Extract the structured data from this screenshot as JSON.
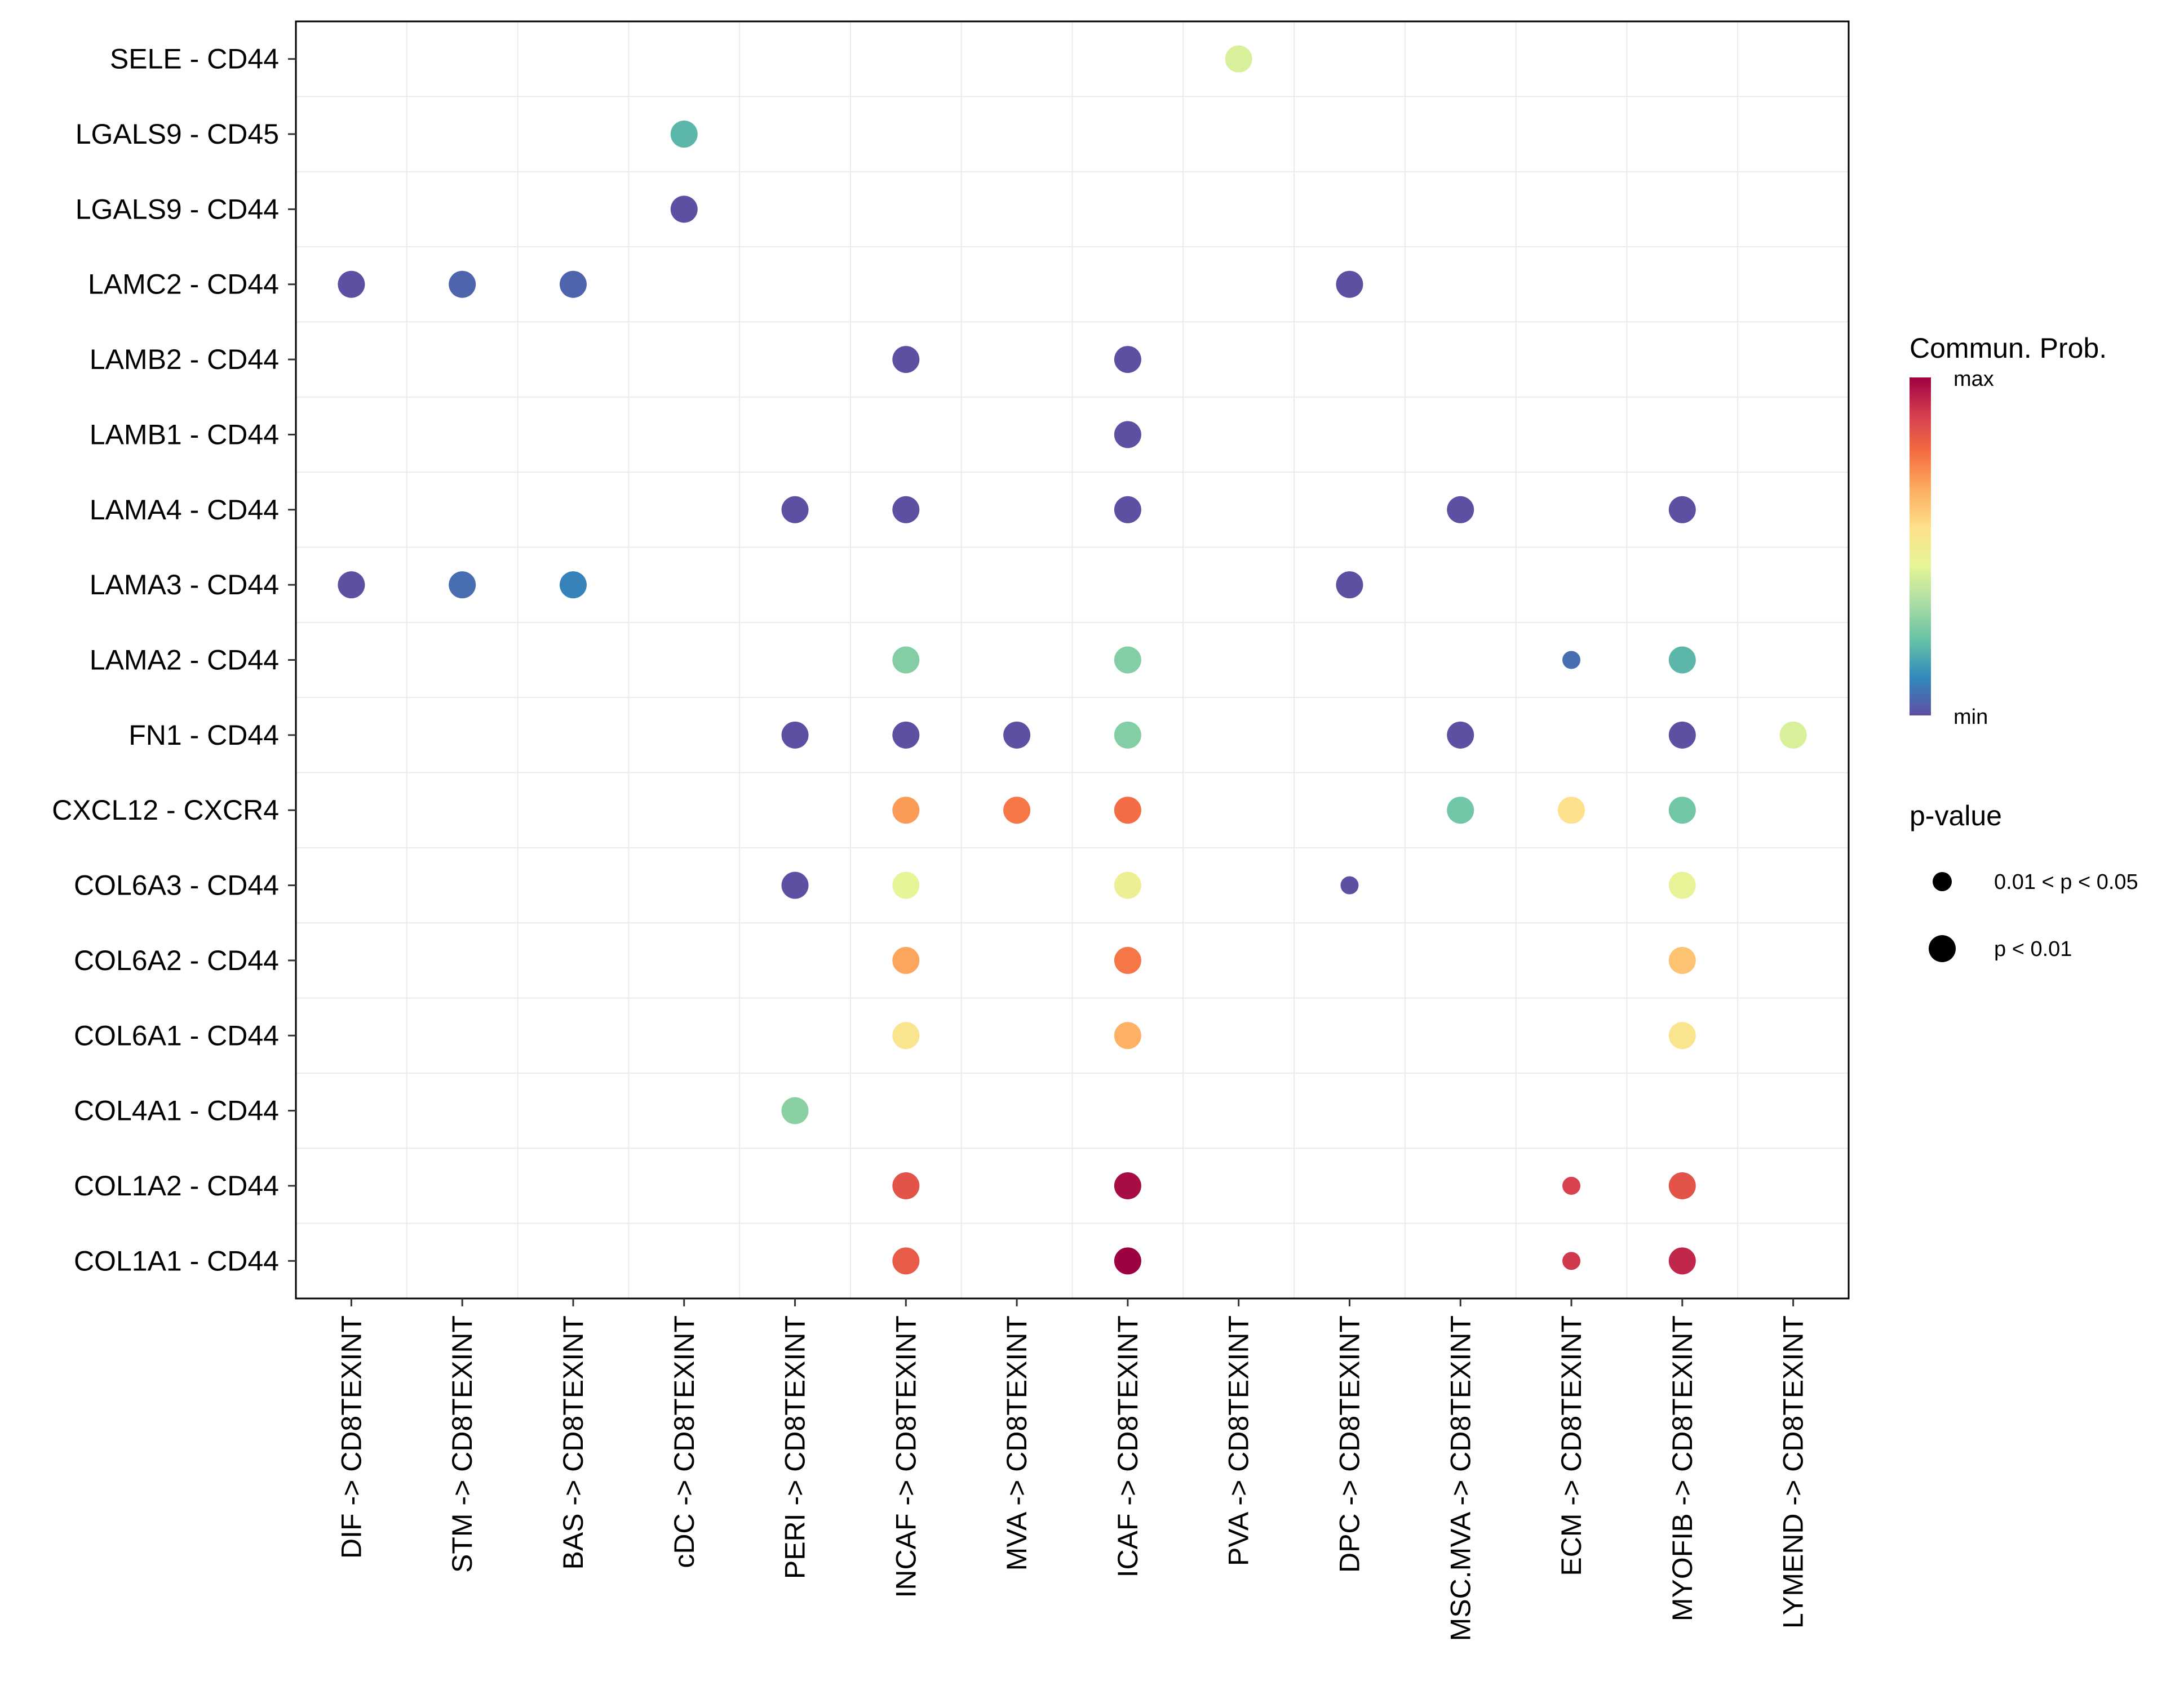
{
  "chart_data": {
    "type": "bubble",
    "x_categories": [
      "DIF -> CD8TEXINT",
      "STM -> CD8TEXINT",
      "BAS -> CD8TEXINT",
      "cDC -> CD8TEXINT",
      "PERI -> CD8TEXINT",
      "INCAF -> CD8TEXINT",
      "MVA -> CD8TEXINT",
      "ICAF -> CD8TEXINT",
      "PVA -> CD8TEXINT",
      "DPC -> CD8TEXINT",
      "MSC.MVA -> CD8TEXINT",
      "ECM -> CD8TEXINT",
      "MYOFIB -> CD8TEXINT",
      "LYMEND -> CD8TEXINT"
    ],
    "y_categories": [
      "SELE - CD44",
      "LGALS9 - CD45",
      "LGALS9 - CD44",
      "LAMC2 - CD44",
      "LAMB2 - CD44",
      "LAMB1 - CD44",
      "LAMA4 - CD44",
      "LAMA3 - CD44",
      "LAMA2 - CD44",
      "FN1 - CD44",
      "CXCL12 - CXCR4",
      "COL6A3 - CD44",
      "COL6A2 - CD44",
      "COL6A1 - CD44",
      "COL4A1 - CD44",
      "COL1A2 - CD44",
      "COL1A1 - CD44"
    ],
    "points": [
      {
        "y": "SELE - CD44",
        "x": "PVA -> CD8TEXINT",
        "prob": 0.42,
        "p": "p < 0.01"
      },
      {
        "y": "LGALS9 - CD45",
        "x": "cDC -> CD8TEXINT",
        "prob": 0.2,
        "p": "p < 0.01"
      },
      {
        "y": "LGALS9 - CD44",
        "x": "cDC -> CD8TEXINT",
        "prob": 0.0,
        "p": "p < 0.01"
      },
      {
        "y": "LAMC2 - CD44",
        "x": "DIF -> CD8TEXINT",
        "prob": 0.0,
        "p": "p < 0.01"
      },
      {
        "y": "LAMC2 - CD44",
        "x": "STM -> CD8TEXINT",
        "prob": 0.04,
        "p": "p < 0.01"
      },
      {
        "y": "LAMC2 - CD44",
        "x": "BAS -> CD8TEXINT",
        "prob": 0.04,
        "p": "p < 0.01"
      },
      {
        "y": "LAMC2 - CD44",
        "x": "DPC -> CD8TEXINT",
        "prob": 0.0,
        "p": "p < 0.01"
      },
      {
        "y": "LAMB2 - CD44",
        "x": "INCAF -> CD8TEXINT",
        "prob": 0.0,
        "p": "p < 0.01"
      },
      {
        "y": "LAMB2 - CD44",
        "x": "ICAF -> CD8TEXINT",
        "prob": 0.0,
        "p": "p < 0.01"
      },
      {
        "y": "LAMB1 - CD44",
        "x": "ICAF -> CD8TEXINT",
        "prob": 0.0,
        "p": "p < 0.01"
      },
      {
        "y": "LAMA4 - CD44",
        "x": "PERI -> CD8TEXINT",
        "prob": 0.0,
        "p": "p < 0.01"
      },
      {
        "y": "LAMA4 - CD44",
        "x": "INCAF -> CD8TEXINT",
        "prob": 0.0,
        "p": "p < 0.01"
      },
      {
        "y": "LAMA4 - CD44",
        "x": "ICAF -> CD8TEXINT",
        "prob": 0.0,
        "p": "p < 0.01"
      },
      {
        "y": "LAMA4 - CD44",
        "x": "MSC.MVA -> CD8TEXINT",
        "prob": 0.0,
        "p": "p < 0.01"
      },
      {
        "y": "LAMA4 - CD44",
        "x": "MYOFIB -> CD8TEXINT",
        "prob": 0.0,
        "p": "p < 0.01"
      },
      {
        "y": "LAMA3 - CD44",
        "x": "DIF -> CD8TEXINT",
        "prob": 0.0,
        "p": "p < 0.01"
      },
      {
        "y": "LAMA3 - CD44",
        "x": "STM -> CD8TEXINT",
        "prob": 0.06,
        "p": "p < 0.01"
      },
      {
        "y": "LAMA3 - CD44",
        "x": "BAS -> CD8TEXINT",
        "prob": 0.1,
        "p": "p < 0.01"
      },
      {
        "y": "LAMA3 - CD44",
        "x": "DPC -> CD8TEXINT",
        "prob": 0.0,
        "p": "p < 0.01"
      },
      {
        "y": "LAMA2 - CD44",
        "x": "INCAF -> CD8TEXINT",
        "prob": 0.27,
        "p": "p < 0.01"
      },
      {
        "y": "LAMA2 - CD44",
        "x": "ICAF -> CD8TEXINT",
        "prob": 0.27,
        "p": "p < 0.01"
      },
      {
        "y": "LAMA2 - CD44",
        "x": "ECM -> CD8TEXINT",
        "prob": 0.06,
        "p": "0.01 < p < 0.05"
      },
      {
        "y": "LAMA2 - CD44",
        "x": "MYOFIB -> CD8TEXINT",
        "prob": 0.2,
        "p": "p < 0.01"
      },
      {
        "y": "FN1 - CD44",
        "x": "PERI -> CD8TEXINT",
        "prob": 0.0,
        "p": "p < 0.01"
      },
      {
        "y": "FN1 - CD44",
        "x": "INCAF -> CD8TEXINT",
        "prob": 0.0,
        "p": "p < 0.01"
      },
      {
        "y": "FN1 - CD44",
        "x": "MVA -> CD8TEXINT",
        "prob": 0.0,
        "p": "p < 0.01"
      },
      {
        "y": "FN1 - CD44",
        "x": "ICAF -> CD8TEXINT",
        "prob": 0.27,
        "p": "p < 0.01"
      },
      {
        "y": "FN1 - CD44",
        "x": "MSC.MVA -> CD8TEXINT",
        "prob": 0.0,
        "p": "p < 0.01"
      },
      {
        "y": "FN1 - CD44",
        "x": "MYOFIB -> CD8TEXINT",
        "prob": 0.0,
        "p": "p < 0.01"
      },
      {
        "y": "FN1 - CD44",
        "x": "LYMEND -> CD8TEXINT",
        "prob": 0.42,
        "p": "p < 0.01"
      },
      {
        "y": "CXCL12 - CXCR4",
        "x": "INCAF -> CD8TEXINT",
        "prob": 0.7,
        "p": "p < 0.01"
      },
      {
        "y": "CXCL12 - CXCR4",
        "x": "MVA -> CD8TEXINT",
        "prob": 0.76,
        "p": "p < 0.01"
      },
      {
        "y": "CXCL12 - CXCR4",
        "x": "ICAF -> CD8TEXINT",
        "prob": 0.78,
        "p": "p < 0.01"
      },
      {
        "y": "CXCL12 - CXCR4",
        "x": "MSC.MVA -> CD8TEXINT",
        "prob": 0.24,
        "p": "p < 0.01"
      },
      {
        "y": "CXCL12 - CXCR4",
        "x": "ECM -> CD8TEXINT",
        "prob": 0.55,
        "p": "p < 0.01"
      },
      {
        "y": "CXCL12 - CXCR4",
        "x": "MYOFIB -> CD8TEXINT",
        "prob": 0.24,
        "p": "p < 0.01"
      },
      {
        "y": "COL6A3 - CD44",
        "x": "PERI -> CD8TEXINT",
        "prob": 0.0,
        "p": "p < 0.01"
      },
      {
        "y": "COL6A3 - CD44",
        "x": "INCAF -> CD8TEXINT",
        "prob": 0.45,
        "p": "p < 0.01"
      },
      {
        "y": "COL6A3 - CD44",
        "x": "ICAF -> CD8TEXINT",
        "prob": 0.48,
        "p": "p < 0.01"
      },
      {
        "y": "COL6A3 - CD44",
        "x": "DPC -> CD8TEXINT",
        "prob": 0.0,
        "p": "0.01 < p < 0.05"
      },
      {
        "y": "COL6A3 - CD44",
        "x": "MYOFIB -> CD8TEXINT",
        "prob": 0.46,
        "p": "p < 0.01"
      },
      {
        "y": "COL6A2 - CD44",
        "x": "INCAF -> CD8TEXINT",
        "prob": 0.68,
        "p": "p < 0.01"
      },
      {
        "y": "COL6A2 - CD44",
        "x": "ICAF -> CD8TEXINT",
        "prob": 0.76,
        "p": "p < 0.01"
      },
      {
        "y": "COL6A2 - CD44",
        "x": "MYOFIB -> CD8TEXINT",
        "prob": 0.62,
        "p": "p < 0.01"
      },
      {
        "y": "COL6A1 - CD44",
        "x": "INCAF -> CD8TEXINT",
        "prob": 0.53,
        "p": "p < 0.01"
      },
      {
        "y": "COL6A1 - CD44",
        "x": "ICAF -> CD8TEXINT",
        "prob": 0.66,
        "p": "p < 0.01"
      },
      {
        "y": "COL6A1 - CD44",
        "x": "MYOFIB -> CD8TEXINT",
        "prob": 0.53,
        "p": "p < 0.01"
      },
      {
        "y": "COL4A1 - CD44",
        "x": "PERI -> CD8TEXINT",
        "prob": 0.28,
        "p": "p < 0.01"
      },
      {
        "y": "COL1A2 - CD44",
        "x": "INCAF -> CD8TEXINT",
        "prob": 0.84,
        "p": "p < 0.01"
      },
      {
        "y": "COL1A2 - CD44",
        "x": "ICAF -> CD8TEXINT",
        "prob": 0.98,
        "p": "p < 0.01"
      },
      {
        "y": "COL1A2 - CD44",
        "x": "ECM -> CD8TEXINT",
        "prob": 0.88,
        "p": "0.01 < p < 0.05"
      },
      {
        "y": "COL1A2 - CD44",
        "x": "MYOFIB -> CD8TEXINT",
        "prob": 0.84,
        "p": "p < 0.01"
      },
      {
        "y": "COL1A1 - CD44",
        "x": "INCAF -> CD8TEXINT",
        "prob": 0.82,
        "p": "p < 0.01"
      },
      {
        "y": "COL1A1 - CD44",
        "x": "ICAF -> CD8TEXINT",
        "prob": 1.0,
        "p": "p < 0.01"
      },
      {
        "y": "COL1A1 - CD44",
        "x": "ECM -> CD8TEXINT",
        "prob": 0.9,
        "p": "0.01 < p < 0.05"
      },
      {
        "y": "COL1A1 - CD44",
        "x": "MYOFIB -> CD8TEXINT",
        "prob": 0.93,
        "p": "p < 0.01"
      }
    ],
    "color_legend": {
      "title": "Commun. Prob.",
      "max_label": "max",
      "min_label": "min"
    },
    "size_legend": {
      "title": "p-value",
      "labels": [
        "0.01 < p < 0.05",
        "p < 0.01"
      ]
    },
    "palette": [
      "#5E4FA2",
      "#3288BD",
      "#66C2A5",
      "#ABDDA4",
      "#E6F598",
      "#FEE08B",
      "#FDAE61",
      "#F46D43",
      "#D53E4F",
      "#9E0142"
    ],
    "grid": true
  }
}
